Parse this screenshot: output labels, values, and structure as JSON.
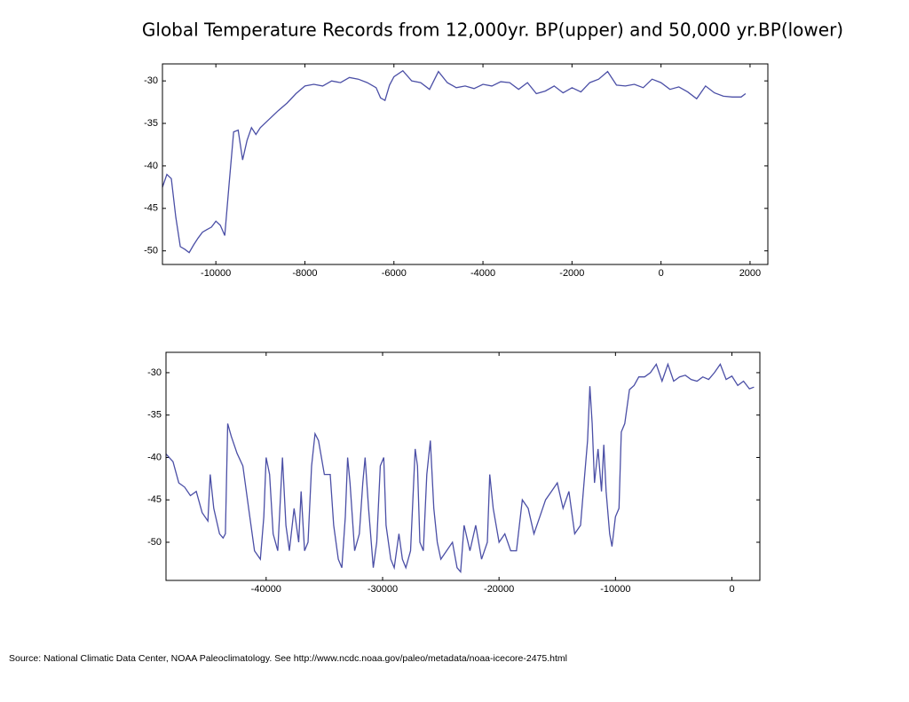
{
  "title": "Global Temperature Records from 12,000yr. BP(upper) and 50,000 yr.BP(lower)",
  "source": "Source: National Climatic Data Center, NOAA Paleoclimatology.   See  http://www.ncdc.noaa.gov/paleo/metadata/noaa-icecore-2475.html",
  "chart_data": [
    {
      "type": "line",
      "color": "#4b4fa6",
      "x": [
        -11200,
        -11100,
        -11000,
        -10900,
        -10800,
        -10700,
        -10600,
        -10500,
        -10400,
        -10300,
        -10200,
        -10100,
        -10000,
        -9900,
        -9800,
        -9700,
        -9600,
        -9500,
        -9400,
        -9300,
        -9200,
        -9100,
        -9000,
        -8800,
        -8600,
        -8400,
        -8200,
        -8000,
        -7800,
        -7600,
        -7400,
        -7200,
        -7000,
        -6800,
        -6600,
        -6400,
        -6300,
        -6200,
        -6100,
        -6000,
        -5800,
        -5600,
        -5400,
        -5200,
        -5000,
        -4800,
        -4600,
        -4400,
        -4200,
        -4000,
        -3800,
        -3600,
        -3400,
        -3200,
        -3000,
        -2800,
        -2600,
        -2400,
        -2200,
        -2000,
        -1800,
        -1600,
        -1400,
        -1200,
        -1000,
        -800,
        -600,
        -400,
        -200,
        0,
        200,
        400,
        600,
        800,
        1000,
        1200,
        1400,
        1600,
        1800,
        1900
      ],
      "values": [
        -42.5,
        -41,
        -41.5,
        -46,
        -49.5,
        -49.8,
        -50.2,
        -49.3,
        -48.5,
        -47.8,
        -47.5,
        -47.2,
        -46.5,
        -47,
        -48.2,
        -42,
        -36,
        -35.8,
        -39.3,
        -37,
        -35.5,
        -36.3,
        -35.5,
        -34.5,
        -33.5,
        -32.6,
        -31.5,
        -30.6,
        -30.4,
        -30.6,
        -30,
        -30.2,
        -29.6,
        -29.8,
        -30.2,
        -30.8,
        -32,
        -32.3,
        -30.5,
        -29.5,
        -28.8,
        -30,
        -30.2,
        -31,
        -28.9,
        -30.2,
        -30.8,
        -30.6,
        -30.9,
        -30.4,
        -30.6,
        -30.1,
        -30.2,
        -31,
        -30.2,
        -31.5,
        -31.2,
        -30.6,
        -31.4,
        -30.8,
        -31.3,
        -30.2,
        -29.8,
        -28.9,
        -30.5,
        -30.6,
        -30.4,
        -30.8,
        -29.8,
        -30.2,
        -31,
        -30.7,
        -31.3,
        -32.1,
        -30.6,
        -31.4,
        -31.8,
        -31.9,
        -31.9,
        -31.5
      ],
      "xlim": [
        -11200,
        2400
      ],
      "ylim": [
        -51.6,
        -28
      ],
      "xticks": [
        -10000,
        -8000,
        -6000,
        -4000,
        -2000,
        0,
        2000
      ],
      "yticks": [
        -50,
        -45,
        -40,
        -35,
        -30
      ]
    },
    {
      "type": "line",
      "color": "#4b4fa6",
      "x": [
        -48600,
        -48000,
        -47500,
        -47000,
        -46500,
        -46000,
        -45500,
        -45000,
        -44800,
        -44500,
        -44000,
        -43700,
        -43500,
        -43300,
        -43000,
        -42500,
        -42000,
        -41500,
        -41000,
        -40500,
        -40200,
        -40000,
        -39700,
        -39400,
        -39000,
        -38600,
        -38300,
        -38000,
        -37600,
        -37200,
        -37000,
        -36700,
        -36400,
        -36100,
        -35800,
        -35500,
        -35000,
        -34500,
        -34200,
        -33800,
        -33500,
        -33200,
        -33000,
        -32800,
        -32400,
        -32000,
        -31700,
        -31500,
        -31200,
        -30800,
        -30500,
        -30200,
        -29900,
        -29700,
        -29300,
        -29000,
        -28600,
        -28300,
        -28000,
        -27600,
        -27200,
        -27000,
        -26800,
        -26500,
        -26200,
        -25900,
        -25600,
        -25300,
        -25000,
        -24500,
        -24000,
        -23600,
        -23300,
        -23000,
        -22500,
        -22000,
        -21500,
        -21000,
        -20800,
        -20500,
        -20000,
        -19500,
        -19000,
        -18500,
        -18000,
        -17500,
        -17000,
        -16500,
        -16000,
        -15500,
        -15000,
        -14500,
        -14000,
        -13500,
        -13000,
        -12700,
        -12400,
        -12200,
        -12000,
        -11800,
        -11500,
        -11200,
        -11000,
        -10800,
        -10500,
        -10300,
        -10000,
        -9700,
        -9500,
        -9200,
        -8800,
        -8400,
        -8000,
        -7500,
        -7000,
        -6500,
        -6000,
        -5500,
        -5000,
        -4500,
        -4000,
        -3500,
        -3000,
        -2500,
        -2000,
        -1500,
        -1000,
        -500,
        0,
        500,
        1000,
        1500,
        1900
      ],
      "values": [
        -39.6,
        -40.5,
        -43,
        -43.5,
        -44.5,
        -44,
        -46.5,
        -47.5,
        -42,
        -46,
        -49,
        -49.5,
        -49,
        -36,
        -37.5,
        -39.5,
        -41,
        -46,
        -51,
        -52,
        -47,
        -40,
        -42,
        -49,
        -51,
        -40,
        -48,
        -51,
        -46,
        -50,
        -44,
        -51,
        -50,
        -41,
        -37.2,
        -38,
        -42,
        -42,
        -48,
        -52,
        -53,
        -47,
        -40,
        -43,
        -51,
        -49,
        -43,
        -40,
        -46,
        -53,
        -50,
        -41,
        -40,
        -48,
        -52,
        -53,
        -49,
        -52,
        -53,
        -51,
        -39,
        -41,
        -50,
        -51,
        -42,
        -38,
        -46,
        -50,
        -52,
        -51,
        -50,
        -53,
        -53.5,
        -48,
        -51,
        -48,
        -52,
        -50,
        -42,
        -46,
        -50,
        -49,
        -51,
        -51,
        -45,
        -46,
        -49,
        -47,
        -45,
        -44,
        -43,
        -46,
        -44,
        -49,
        -48,
        -43,
        -38,
        -31.6,
        -36,
        -43,
        -39,
        -44,
        -38.5,
        -44,
        -49,
        -50.5,
        -47,
        -46,
        -37,
        -36,
        -32,
        -31.5,
        -30.5,
        -30.5,
        -30,
        -29,
        -31,
        -29,
        -31,
        -30.5,
        -30.3,
        -30.8,
        -31,
        -30.5,
        -30.8,
        -30,
        -29,
        -30.8,
        -30.4,
        -31.5,
        -31,
        -31.9,
        -31.7
      ],
      "xlim": [
        -48600,
        2400
      ],
      "ylim": [
        -54.5,
        -27.6
      ],
      "xticks": [
        -40000,
        -30000,
        -20000,
        -10000,
        0
      ],
      "yticks": [
        -50,
        -45,
        -40,
        -35,
        -30
      ]
    }
  ]
}
